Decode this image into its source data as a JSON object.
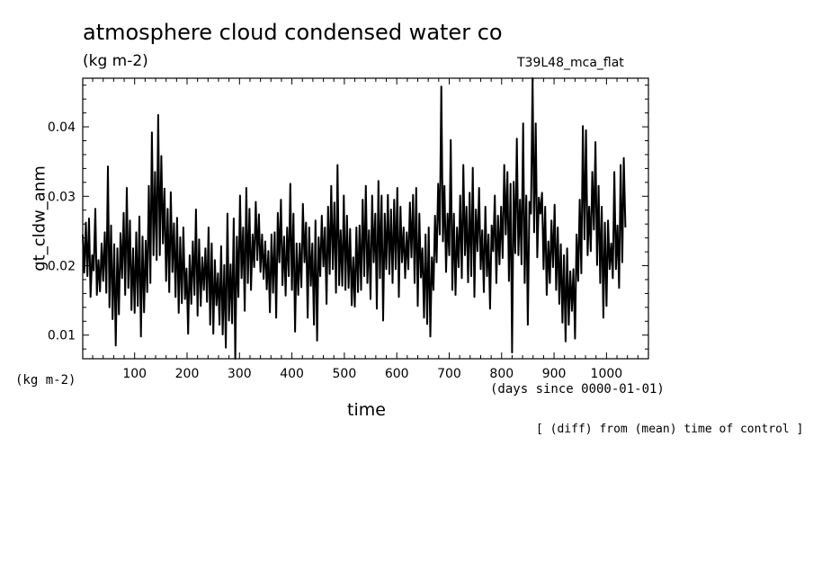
{
  "header": {
    "title": "atmosphere cloud condensed water co",
    "units": "(kg m-2)",
    "experiment": "T39L48_mca_flat"
  },
  "footer": {
    "units_left": "(kg m-2)",
    "x_unit": "(days since 0000-01-01)",
    "note": "[ (diff) from (mean) time of control ]"
  },
  "chart_data": {
    "type": "line",
    "title": "atmosphere cloud condensed water co",
    "xlabel": "time",
    "ylabel": "gt_cldw_anm",
    "xlim": [
      1,
      1080
    ],
    "ylim": [
      0.0066,
      0.047
    ],
    "x_ticks": [
      100,
      200,
      300,
      400,
      500,
      600,
      700,
      800,
      900,
      1000
    ],
    "y_ticks": [
      0.01,
      0.02,
      0.03,
      0.04
    ],
    "series": [
      {
        "x_start": 1,
        "x_step": 3,
        "values": [
          0.0245,
          0.019,
          0.0262,
          0.0185,
          0.0268,
          0.0155,
          0.0215,
          0.0193,
          0.0282,
          0.0158,
          0.0208,
          0.0163,
          0.0232,
          0.0178,
          0.0248,
          0.0161,
          0.0343,
          0.014,
          0.0258,
          0.0123,
          0.0231,
          0.0085,
          0.0225,
          0.013,
          0.0247,
          0.0182,
          0.0276,
          0.0158,
          0.0312,
          0.0168,
          0.0265,
          0.0136,
          0.0225,
          0.0132,
          0.0248,
          0.0142,
          0.0271,
          0.0098,
          0.0242,
          0.0133,
          0.0236,
          0.0162,
          0.0315,
          0.0175,
          0.0392,
          0.0215,
          0.0335,
          0.0208,
          0.0417,
          0.0215,
          0.0358,
          0.0232,
          0.0311,
          0.0178,
          0.0282,
          0.0162,
          0.0306,
          0.0191,
          0.0261,
          0.0155,
          0.0269,
          0.0132,
          0.0241,
          0.0146,
          0.0255,
          0.0152,
          0.0196,
          0.0102,
          0.0215,
          0.0145,
          0.0235,
          0.0158,
          0.0281,
          0.0128,
          0.0238,
          0.0142,
          0.0212,
          0.0165,
          0.0225,
          0.0148,
          0.0255,
          0.0115,
          0.0232,
          0.0102,
          0.0208,
          0.0143,
          0.0189,
          0.0115,
          0.0228,
          0.0101,
          0.0201,
          0.0082,
          0.0275,
          0.0121,
          0.0202,
          0.0117,
          0.0268,
          0.0066,
          0.0242,
          0.0155,
          0.0301,
          0.0182,
          0.0255,
          0.0135,
          0.0312,
          0.0175,
          0.0282,
          0.0165,
          0.0245,
          0.0198,
          0.0292,
          0.0208,
          0.0274,
          0.0191,
          0.0245,
          0.0181,
          0.0235,
          0.0166,
          0.0221,
          0.0133,
          0.0245,
          0.0161,
          0.0248,
          0.0125,
          0.0276,
          0.0205,
          0.0295,
          0.0172,
          0.0242,
          0.0157,
          0.0255,
          0.0185,
          0.0318,
          0.0165,
          0.0275,
          0.0105,
          0.0232,
          0.0158,
          0.0232,
          0.0169,
          0.0289,
          0.0205,
          0.0262,
          0.0125,
          0.0255,
          0.0171,
          0.0232,
          0.0115,
          0.0265,
          0.0092,
          0.0241,
          0.0185,
          0.0272,
          0.0199,
          0.0255,
          0.0145,
          0.0285,
          0.0188,
          0.0315,
          0.0195,
          0.0291,
          0.0161,
          0.0345,
          0.0172,
          0.0251,
          0.0171,
          0.0301,
          0.0165,
          0.0272,
          0.0168,
          0.0253,
          0.0143,
          0.0212,
          0.0141,
          0.0255,
          0.0162,
          0.0258,
          0.0165,
          0.0295,
          0.0185,
          0.0315,
          0.0175,
          0.0251,
          0.0152,
          0.0301,
          0.0205,
          0.0275,
          0.0138,
          0.0322,
          0.0182,
          0.0301,
          0.0121,
          0.0275,
          0.0195,
          0.0302,
          0.0188,
          0.0281,
          0.0175,
          0.0295,
          0.0195,
          0.0312,
          0.0155,
          0.0285,
          0.0205,
          0.0255,
          0.0182,
          0.0248,
          0.0195,
          0.0291,
          0.0212,
          0.0302,
          0.0175,
          0.0312,
          0.0142,
          0.0275,
          0.0183,
          0.0225,
          0.0125,
          0.0245,
          0.0116,
          0.0255,
          0.0098,
          0.0212,
          0.0165,
          0.0272,
          0.0205,
          0.0318,
          0.0245,
          0.0458,
          0.0235,
          0.0315,
          0.0191,
          0.0275,
          0.0215,
          0.0381,
          0.0165,
          0.0275,
          0.0158,
          0.0255,
          0.0198,
          0.0301,
          0.0182,
          0.0345,
          0.0215,
          0.0285,
          0.0176,
          0.0305,
          0.0185,
          0.0341,
          0.0155,
          0.0281,
          0.0221,
          0.0312,
          0.0195,
          0.0251,
          0.0162,
          0.0285,
          0.0185,
          0.0245,
          0.0138,
          0.0258,
          0.0221,
          0.0301,
          0.0175,
          0.0272,
          0.0202,
          0.0285,
          0.0211,
          0.0345,
          0.0245,
          0.0335,
          0.0178,
          0.0318,
          0.0075,
          0.0321,
          0.0218,
          0.0383,
          0.0215,
          0.0295,
          0.0202,
          0.0405,
          0.0175,
          0.0301,
          0.0115,
          0.0292,
          0.0275,
          0.0471,
          0.0248,
          0.0405,
          0.0212,
          0.0298,
          0.0275,
          0.0305,
          0.0195,
          0.0285,
          0.0158,
          0.0235,
          0.0175,
          0.0265,
          0.0198,
          0.0288,
          0.0165,
          0.0255,
          0.0145,
          0.0231,
          0.0118,
          0.0215,
          0.0091,
          0.0225,
          0.0115,
          0.0192,
          0.0135,
          0.0195,
          0.0095,
          0.0245,
          0.0178,
          0.0295,
          0.0189,
          0.0401,
          0.0238,
          0.0395,
          0.0215,
          0.0285,
          0.0221,
          0.0335,
          0.0252,
          0.0378,
          0.0201,
          0.0315,
          0.0175,
          0.0285,
          0.0125,
          0.0262,
          0.0142,
          0.0265,
          0.0195,
          0.0232,
          0.0182,
          0.0335,
          0.0195,
          0.0258,
          0.0168,
          0.0345,
          0.0205,
          0.0355,
          0.0255
        ]
      }
    ]
  }
}
